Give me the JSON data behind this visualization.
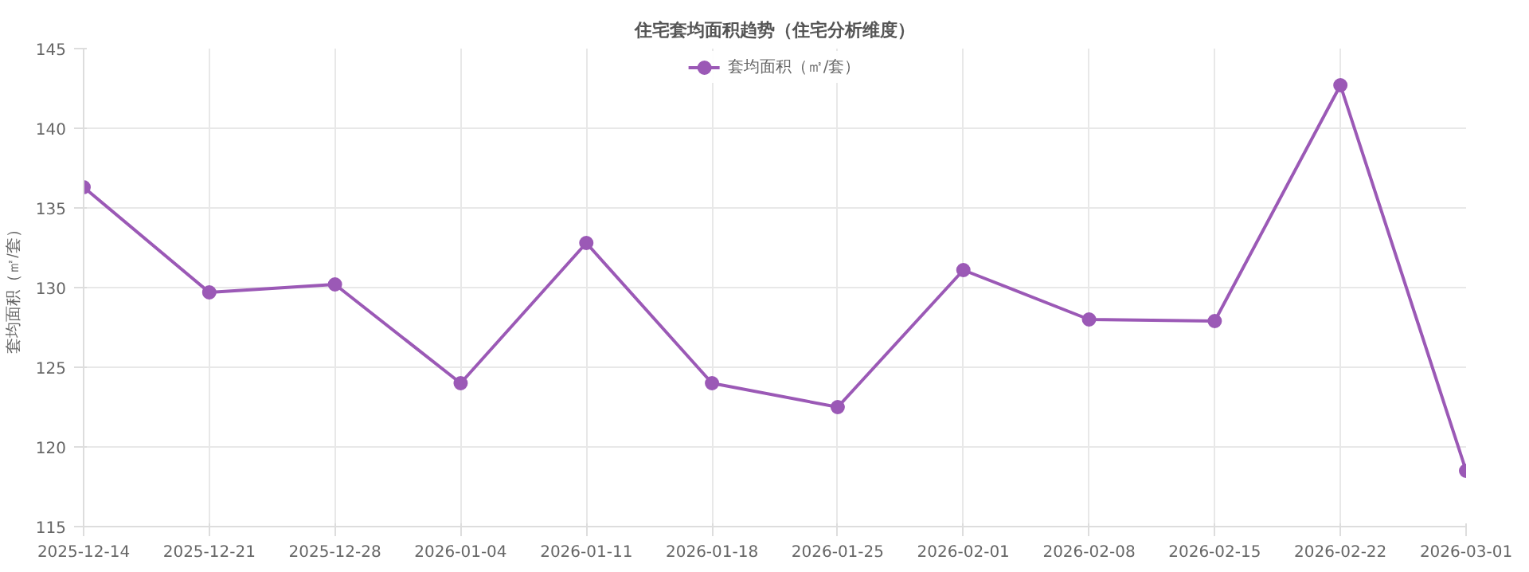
{
  "chart_data": {
    "type": "line",
    "title": "住宅套均面积趋势（住宅分析维度）",
    "ylabel": "套均面积（㎡/套）",
    "categories": [
      "2025-12-14",
      "2025-12-21",
      "2025-12-28",
      "2026-01-04",
      "2026-01-11",
      "2026-01-18",
      "2026-01-25",
      "2026-02-01",
      "2026-02-08",
      "2026-02-15",
      "2026-02-22",
      "2026-03-01"
    ],
    "series": [
      {
        "name": "套均面积（㎡/套）",
        "color": "#9b59b6",
        "values": [
          136.3,
          129.7,
          130.2,
          124.0,
          132.8,
          124.0,
          122.5,
          131.1,
          128.0,
          127.9,
          142.7,
          118.5
        ]
      }
    ],
    "ylim": [
      115,
      145
    ],
    "yticks": [
      115,
      120,
      125,
      130,
      135,
      140,
      145
    ],
    "grid": true,
    "legend": "top",
    "marker": "circle",
    "line_style": "solid"
  }
}
